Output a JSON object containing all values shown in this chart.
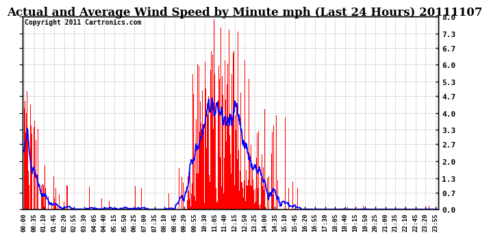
{
  "title": "Actual and Average Wind Speed by Minute mph (Last 24 Hours) 20111107",
  "copyright": "Copyright 2011 Cartronics.com",
  "ylabel_right": [
    "0.0",
    "0.7",
    "1.3",
    "2.0",
    "2.7",
    "3.3",
    "4.0",
    "4.7",
    "5.3",
    "6.0",
    "6.7",
    "7.3",
    "8.0"
  ],
  "yticks_right": [
    0.0,
    0.7,
    1.3,
    2.0,
    2.7,
    3.3,
    4.0,
    4.7,
    5.3,
    6.0,
    6.7,
    7.3,
    8.0
  ],
  "ylim": [
    0.0,
    8.0
  ],
  "bar_color": "#ff0000",
  "line_color": "#0000ff",
  "background_color": "#ffffff",
  "grid_color": "#bbbbbb",
  "title_fontsize": 12,
  "copyright_fontsize": 7,
  "total_minutes": 1440,
  "tick_interval": 35,
  "avg_window": 25
}
